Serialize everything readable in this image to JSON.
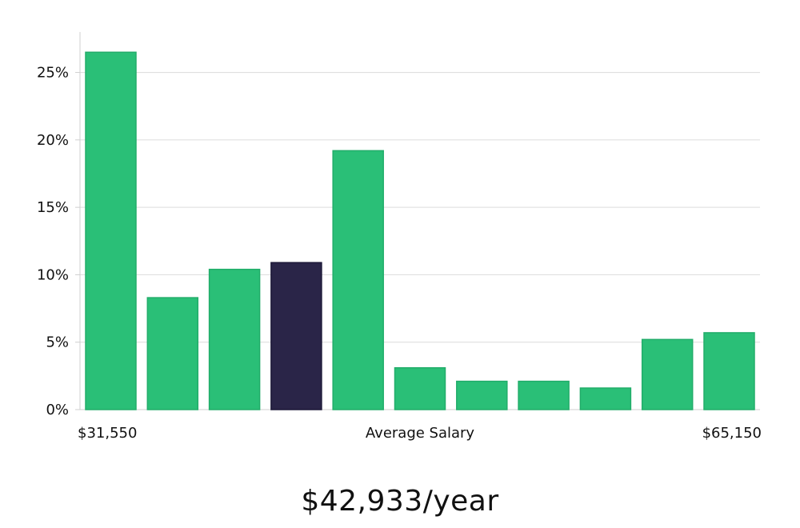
{
  "chart_data": {
    "type": "bar",
    "title": "",
    "xlabel": "Average Salary",
    "ylabel": "",
    "x_range_labels": {
      "min": "$31,550",
      "max": "$65,150"
    },
    "ylim": [
      0,
      28
    ],
    "yticks": [
      0,
      5,
      10,
      15,
      20,
      25
    ],
    "ytick_suffix": "%",
    "grid": true,
    "values": [
      26.5,
      8.3,
      10.4,
      10.9,
      19.2,
      3.1,
      2.1,
      2.1,
      1.6,
      5.2,
      5.7
    ],
    "highlight_index": 3,
    "colors": {
      "bar": "#2abf77",
      "bar_stroke": "#22ad6a",
      "highlight": "#2a2548",
      "highlight_stroke": "#1c1838"
    }
  },
  "average": {
    "label": "$42,933/year"
  }
}
